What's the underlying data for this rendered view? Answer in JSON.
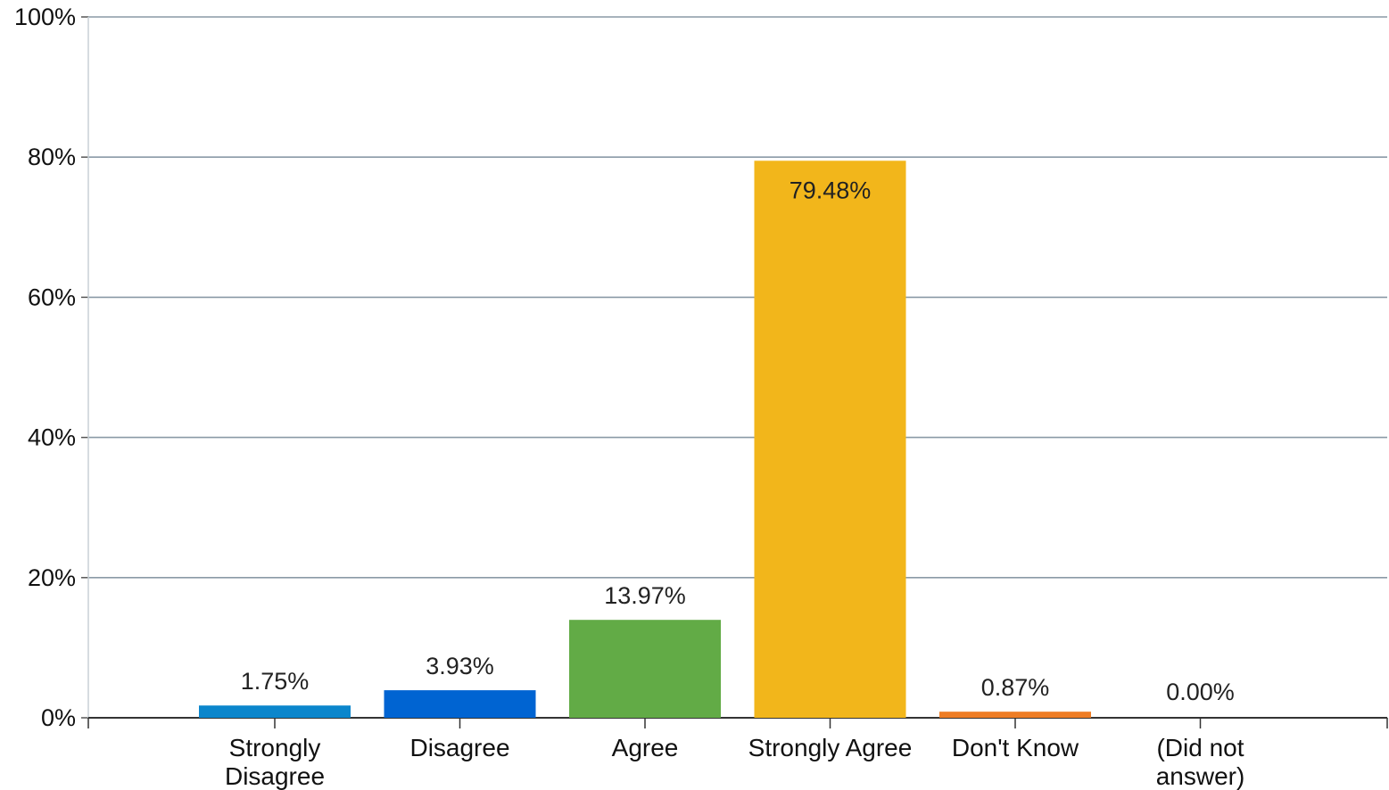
{
  "chart_data": {
    "type": "bar",
    "categories": [
      [
        "Strongly",
        "Disagree"
      ],
      [
        "Disagree"
      ],
      [
        "Agree"
      ],
      [
        "Strongly Agree"
      ],
      [
        "Don't Know"
      ],
      [
        "(Did not",
        "answer)"
      ]
    ],
    "values": [
      1.75,
      3.93,
      13.97,
      79.48,
      0.87,
      0.0
    ],
    "data_labels": [
      "1.75%",
      "3.93%",
      "13.97%",
      "79.48%",
      "0.87%",
      "0.00%"
    ],
    "colors": [
      "#0b86cc",
      "#0064d2",
      "#62ab46",
      "#f2b61b",
      "#ee7d25",
      "#999999"
    ],
    "ylim": [
      0,
      100
    ],
    "yticks": [
      {
        "value": 0,
        "label": "0%"
      },
      {
        "value": 20,
        "label": "20%"
      },
      {
        "value": 40,
        "label": "40%"
      },
      {
        "value": 60,
        "label": "60%"
      },
      {
        "value": 80,
        "label": "80%"
      },
      {
        "value": 100,
        "label": "100%"
      }
    ],
    "grid": true,
    "legend": "none"
  }
}
